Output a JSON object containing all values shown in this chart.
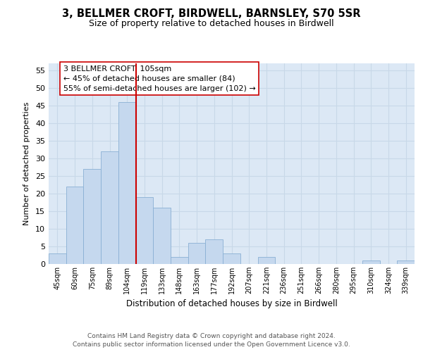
{
  "title": "3, BELLMER CROFT, BIRDWELL, BARNSLEY, S70 5SR",
  "subtitle": "Size of property relative to detached houses in Birdwell",
  "xlabel": "Distribution of detached houses by size in Birdwell",
  "ylabel": "Number of detached properties",
  "bar_labels": [
    "45sqm",
    "60sqm",
    "75sqm",
    "89sqm",
    "104sqm",
    "119sqm",
    "133sqm",
    "148sqm",
    "163sqm",
    "177sqm",
    "192sqm",
    "207sqm",
    "221sqm",
    "236sqm",
    "251sqm",
    "266sqm",
    "280sqm",
    "295sqm",
    "310sqm",
    "324sqm",
    "339sqm"
  ],
  "bar_values": [
    3,
    22,
    27,
    32,
    46,
    19,
    16,
    2,
    6,
    7,
    3,
    0,
    2,
    0,
    0,
    0,
    0,
    0,
    1,
    0,
    1
  ],
  "bar_color": "#c5d8ee",
  "bar_edge_color": "#8ab0d4",
  "vline_color": "#cc0000",
  "annotation_text": "3 BELLMER CROFT: 105sqm\n← 45% of detached houses are smaller (84)\n55% of semi-detached houses are larger (102) →",
  "ylim": [
    0,
    57
  ],
  "yticks": [
    0,
    5,
    10,
    15,
    20,
    25,
    30,
    35,
    40,
    45,
    50,
    55
  ],
  "grid_color": "#c8d8e8",
  "plot_bg_color": "#dce8f5",
  "fig_bg_color": "#ffffff",
  "footer_line1": "Contains HM Land Registry data © Crown copyright and database right 2024.",
  "footer_line2": "Contains public sector information licensed under the Open Government Licence v3.0."
}
